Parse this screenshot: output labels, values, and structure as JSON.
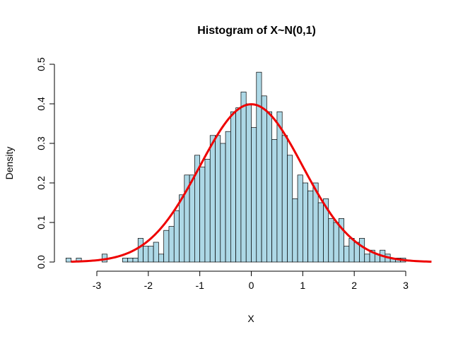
{
  "chart_data": {
    "type": "bar",
    "title": "Histogram of X~N(0,1)",
    "xlabel": "X",
    "ylabel": "Density",
    "xlim": [
      -3.7,
      3.7
    ],
    "ylim": [
      0,
      0.5
    ],
    "xticks": [
      "-3",
      "-2",
      "-1",
      "0",
      "1",
      "2",
      "3"
    ],
    "yticks": [
      "0.0",
      "0.1",
      "0.2",
      "0.3",
      "0.4",
      "0.5"
    ],
    "bin_width": 0.1,
    "bin_edges_start": -3.6,
    "densities": [
      0.01,
      0,
      0.01,
      0,
      0,
      0,
      0,
      0.02,
      0,
      0,
      0,
      0.01,
      0.01,
      0.01,
      0.06,
      0.04,
      0.04,
      0.05,
      0.02,
      0.08,
      0.09,
      0.13,
      0.17,
      0.22,
      0.22,
      0.27,
      0.24,
      0.26,
      0.32,
      0.32,
      0.3,
      0.33,
      0.38,
      0.39,
      0.43,
      0.4,
      0.34,
      0.48,
      0.42,
      0.38,
      0.31,
      0.38,
      0.32,
      0.27,
      0.16,
      0.22,
      0.2,
      0.18,
      0.2,
      0.15,
      0.16,
      0.11,
      0.1,
      0.11,
      0.04,
      0.06,
      0.05,
      0.06,
      0.02,
      0.03,
      0.02,
      0.03,
      0.02,
      0.01,
      0.01,
      0.01
    ],
    "curve": {
      "name": "",
      "color": "#ee0000",
      "function": "normal_density",
      "mean": 0,
      "sd": 1,
      "x_range": [
        -3.5,
        3.5
      ]
    },
    "bar_color": "#add8e6",
    "grid": false,
    "legend": "none"
  }
}
